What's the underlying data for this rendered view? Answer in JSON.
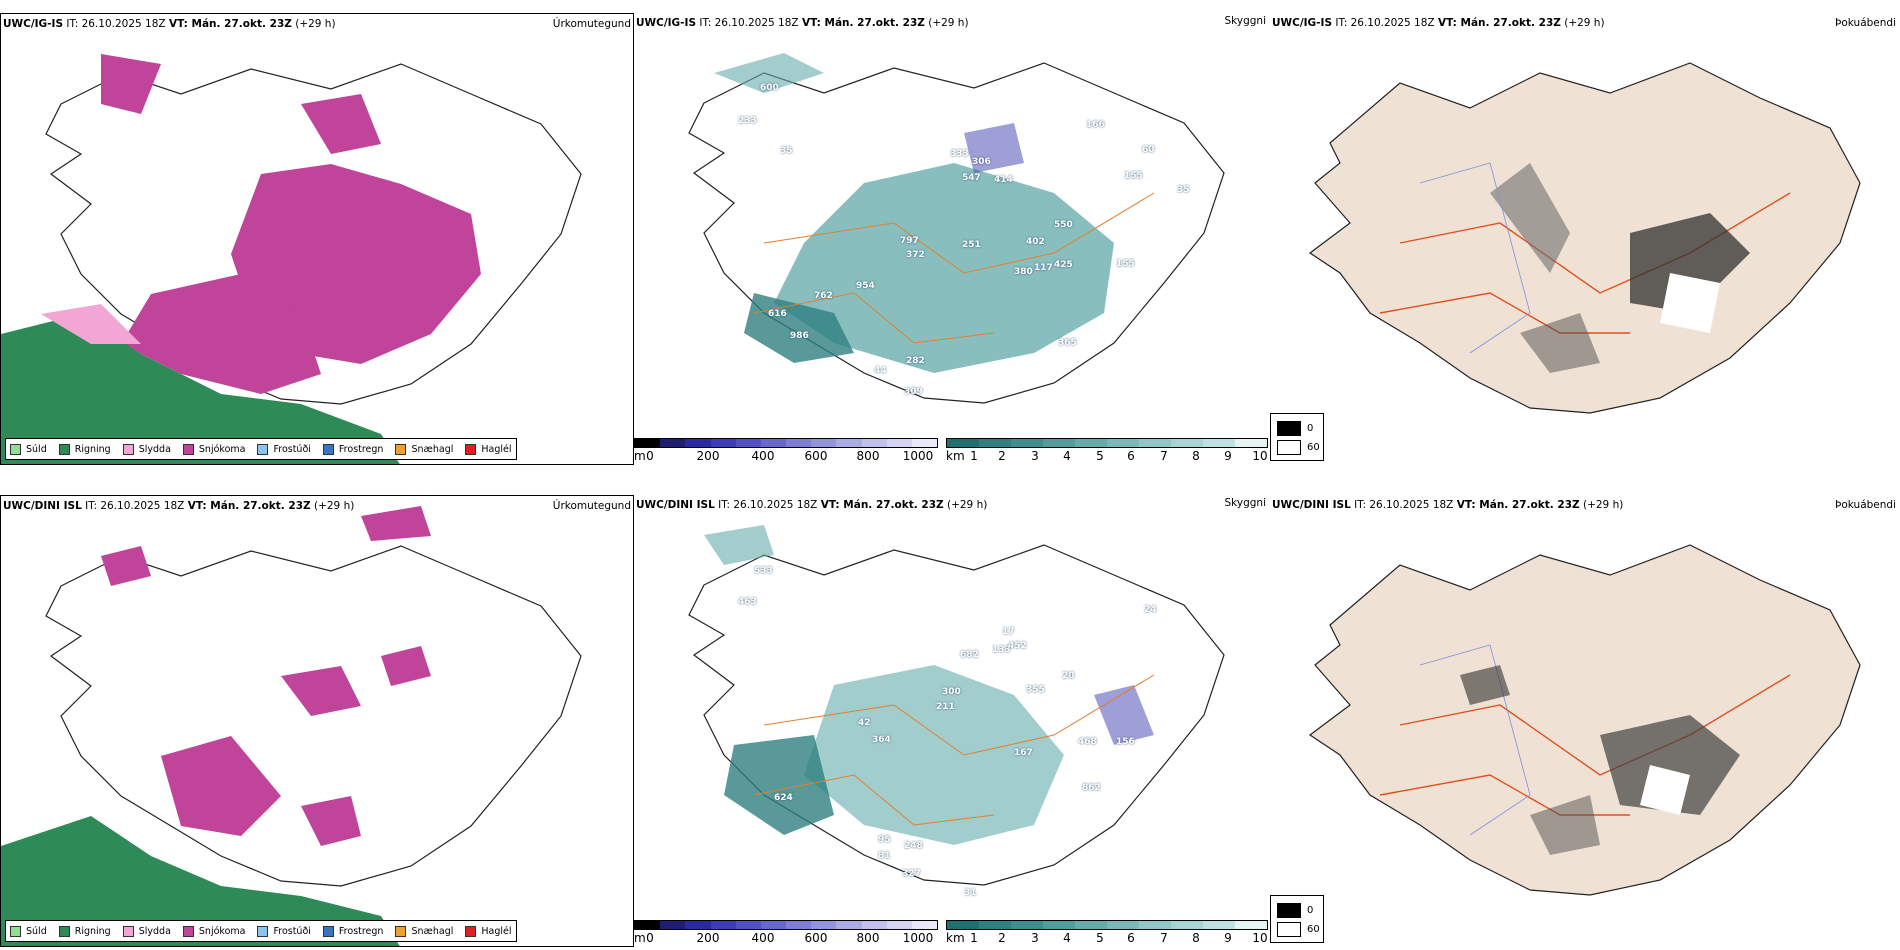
{
  "rows": [
    {
      "model": "UWC/IG-IS",
      "it_label": "IT: 26.10.2025 18Z",
      "vt_bold": "VT: Mán. 27.okt. 23Z",
      "lead": "(+29 h)",
      "precip_title": "Úrkomutegund",
      "vis_title": "Skyggni",
      "fog_title": "Þokuábendi",
      "labels": [
        "600",
        "233",
        "35",
        "547",
        "414",
        "333",
        "306",
        "166",
        "155",
        "60",
        "35",
        "797",
        "372",
        "251",
        "550",
        "402",
        "425",
        "380",
        "117",
        "155",
        "762",
        "954",
        "616",
        "986",
        "282",
        "44",
        "309",
        "365"
      ]
    },
    {
      "model": "UWC/DINI ISL",
      "it_label": "IT: 26.10.2025 18Z",
      "vt_bold": "VT: Mán. 27.okt. 23Z",
      "lead": "(+29 h)",
      "precip_title": "Úrkomutegund",
      "vis_title": "Skyggni",
      "fog_title": "Þokuábendi",
      "labels": [
        "533",
        "463",
        "24",
        "682",
        "133",
        "452",
        "17",
        "300",
        "211",
        "355",
        "20",
        "468",
        "156",
        "167",
        "862",
        "624",
        "42",
        "364",
        "95",
        "248",
        "81",
        "327",
        "31"
      ]
    }
  ],
  "precip_legend": [
    {
      "label": "Súld",
      "color": "#90e090"
    },
    {
      "label": "Rigning",
      "color": "#2e8b57"
    },
    {
      "label": "Slydda",
      "color": "#f2a6d3"
    },
    {
      "label": "Snjókoma",
      "color": "#c0449a"
    },
    {
      "label": "Frostúði",
      "color": "#8cc3f0"
    },
    {
      "label": "Frostregn",
      "color": "#3a75c4"
    },
    {
      "label": "Snæhagl",
      "color": "#f0a030"
    },
    {
      "label": "Haglél",
      "color": "#e02020"
    }
  ],
  "ceiling_bar": {
    "unit": "m",
    "ticks": [
      "0",
      "200",
      "400",
      "600",
      "800",
      "1000"
    ],
    "colors": [
      "#000000",
      "#1e1e70",
      "#2a2aa0",
      "#3c3cb8",
      "#5252c4",
      "#6868cc",
      "#7e7ed4",
      "#9494dc",
      "#aaaae4",
      "#c0c0ec",
      "#d4d4f2",
      "#e8e8f8"
    ]
  },
  "visibility_bar": {
    "unit": "km",
    "ticks": [
      "1",
      "2",
      "3",
      "4",
      "5",
      "6",
      "7",
      "8",
      "9",
      "10"
    ],
    "colors": [
      "#1f7070",
      "#2f8080",
      "#3f8e8e",
      "#529c9c",
      "#66aaaa",
      "#7ab8b8",
      "#90c6c6",
      "#a8d4d4",
      "#c0e2e2",
      "#e6f4f4"
    ]
  },
  "cloud_legend": {
    "values": [
      "0",
      "60"
    ],
    "colors": [
      "#000000",
      "#ffffff"
    ]
  }
}
